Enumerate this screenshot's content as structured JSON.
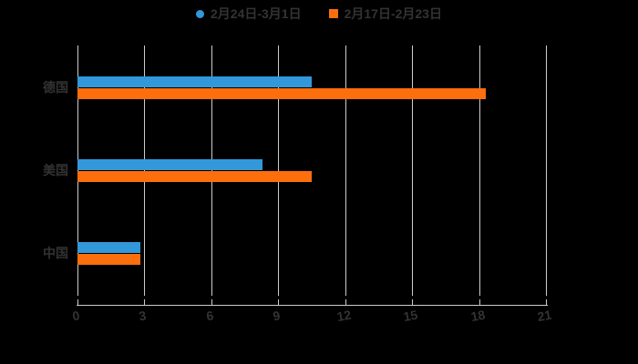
{
  "page": {
    "background_color": "#000000",
    "text_color": "#333333"
  },
  "legend": {
    "position": "top-center",
    "items": [
      {
        "label": "2月24日-3月1日",
        "marker": "circle",
        "color": "#3398da"
      },
      {
        "label": "2月17日-2月23日",
        "marker": "square",
        "color": "#fd6e0d"
      }
    ]
  },
  "chart_data": {
    "type": "bar",
    "orientation": "horizontal",
    "title": "",
    "xlabel": "",
    "ylabel": "",
    "categories": [
      "德国",
      "美国",
      "中国"
    ],
    "series": [
      {
        "name": "2月24日-3月1日",
        "color": "#3398da",
        "values": [
          10.5,
          8.3,
          2.8
        ]
      },
      {
        "name": "2月17日-2月23日",
        "color": "#fd6e0d",
        "values": [
          18.3,
          10.5,
          2.8
        ]
      }
    ],
    "xlim": [
      0,
      21
    ],
    "x_ticks": [
      0,
      3,
      6,
      9,
      12,
      15,
      18,
      21
    ],
    "grid": true,
    "gridline_color": "#cccccc",
    "axis_line_color": "#cccccc",
    "axis_text_color": "#333333",
    "x_tick_label_rotation_deg": -10,
    "legend_position": "top"
  }
}
